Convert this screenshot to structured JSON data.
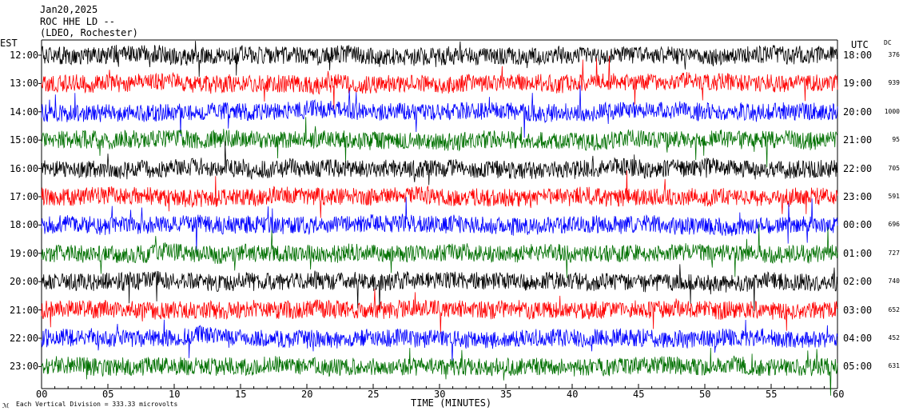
{
  "header": {
    "date": "Jan20,2025",
    "station": "ROC HHE LD --",
    "location": "(LDEO, Rochester)"
  },
  "axes": {
    "left_tz": "EST",
    "right_tz": "UTC",
    "dc_label": "DC",
    "xlabel": "TIME (MINUTES)"
  },
  "footer": {
    "scale_note": "Each Vertical Division =  333.33 microvolts",
    "corner_mark": "ℳ"
  },
  "colors": {
    "traces": [
      "#000000",
      "#ff0000",
      "#0000ff",
      "#007000"
    ],
    "frame": "#000000",
    "background": "#ffffff"
  },
  "chart_data": {
    "type": "line",
    "title": "",
    "xlabel": "TIME (MINUTES)",
    "ylabel": "",
    "xlim": [
      0,
      60
    ],
    "x_ticks": [
      "00",
      "05",
      "10",
      "15",
      "20",
      "25",
      "30",
      "35",
      "40",
      "45",
      "50",
      "55",
      "60"
    ],
    "grid": false,
    "legend": "none",
    "rows": [
      {
        "est": "12:00",
        "utc": "18:00",
        "dc": "376",
        "color": "#000000"
      },
      {
        "est": "13:00",
        "utc": "19:00",
        "dc": "939",
        "color": "#ff0000"
      },
      {
        "est": "14:00",
        "utc": "20:00",
        "dc": "1000",
        "color": "#0000ff"
      },
      {
        "est": "15:00",
        "utc": "21:00",
        "dc": "95",
        "color": "#007000"
      },
      {
        "est": "16:00",
        "utc": "22:00",
        "dc": "705",
        "color": "#000000"
      },
      {
        "est": "17:00",
        "utc": "23:00",
        "dc": "591",
        "color": "#ff0000"
      },
      {
        "est": "18:00",
        "utc": "00:00",
        "dc": "696",
        "color": "#0000ff"
      },
      {
        "est": "19:00",
        "utc": "01:00",
        "dc": "727",
        "color": "#007000"
      },
      {
        "est": "20:00",
        "utc": "02:00",
        "dc": "740",
        "color": "#000000"
      },
      {
        "est": "21:00",
        "utc": "03:00",
        "dc": "652",
        "color": "#ff0000"
      },
      {
        "est": "22:00",
        "utc": "04:00",
        "dc": "452",
        "color": "#0000ff"
      },
      {
        "est": "23:00",
        "utc": "05:00",
        "dc": "631",
        "color": "#007000"
      }
    ]
  }
}
